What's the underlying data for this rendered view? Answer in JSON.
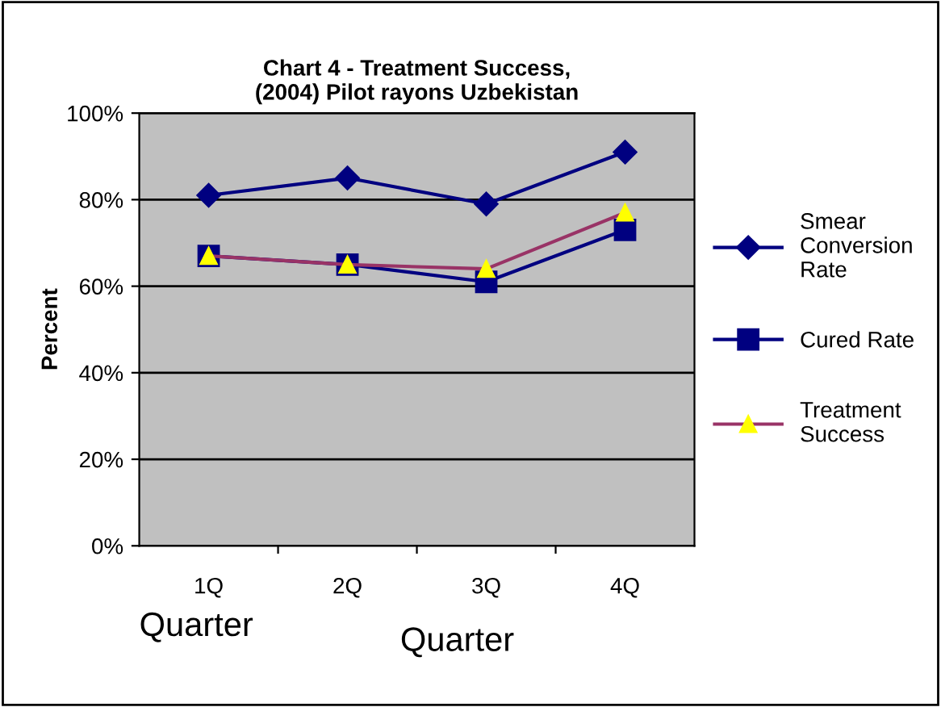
{
  "chart_data": {
    "type": "line",
    "title": "Chart 4 - Treatment Success,\n(2004) Pilot rayons Uzbekistan",
    "xlabel": "Quarter",
    "ylabel": "Percent",
    "annotations": [
      "Quarter"
    ],
    "categories": [
      "1Q",
      "2Q",
      "3Q",
      "4Q"
    ],
    "series": [
      {
        "name": "Smear\nConversion\nRate",
        "color": "#000080",
        "marker": "diamond",
        "values": [
          81,
          85,
          79,
          91
        ]
      },
      {
        "name": "Cured Rate",
        "color": "#000080",
        "marker": "square",
        "values": [
          67,
          65,
          61,
          73
        ]
      },
      {
        "name": "Treatment\nSuccess",
        "color": "#993366",
        "marker": "triangle",
        "values": [
          67,
          65,
          64,
          77
        ]
      }
    ],
    "ylim": [
      0,
      100
    ],
    "yticks": [
      {
        "value": 0,
        "label": "0%"
      },
      {
        "value": 20,
        "label": "20%"
      },
      {
        "value": 40,
        "label": "40%"
      },
      {
        "value": 60,
        "label": "60%"
      },
      {
        "value": 80,
        "label": "80%"
      },
      {
        "value": 100,
        "label": "100%"
      }
    ],
    "grid": "y",
    "legend": "right"
  }
}
